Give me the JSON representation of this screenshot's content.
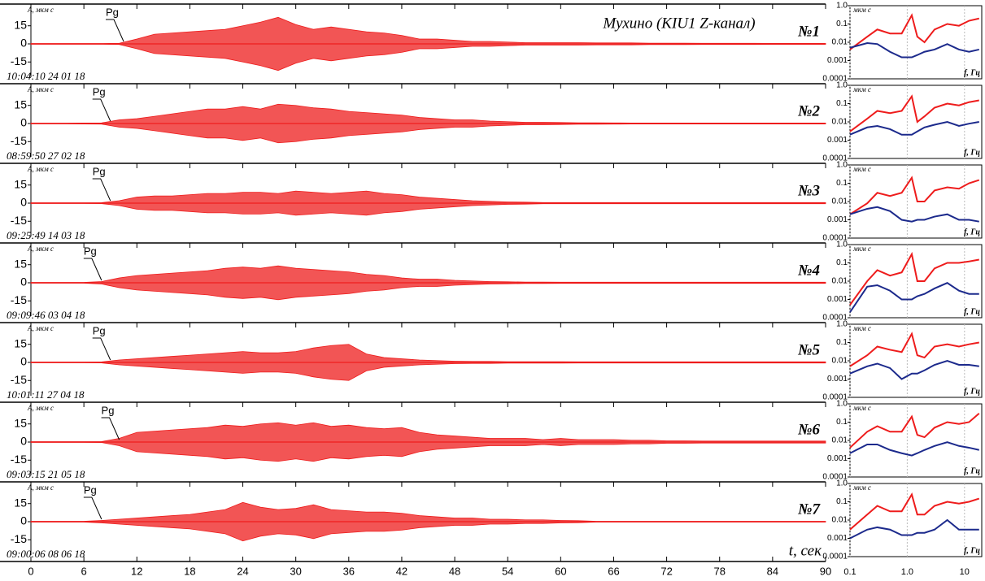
{
  "chart_data": {
    "type": "seismogram",
    "title": "Мухино (KIU1 Z-канал)",
    "xlabel": "t, сек",
    "ylabel": "A, мкм с",
    "pick_label": "Pg",
    "color": "#ee1c1c",
    "xlim": [
      0,
      90
    ],
    "xticks": [
      0,
      6,
      12,
      18,
      24,
      30,
      36,
      42,
      48,
      54,
      60,
      66,
      72,
      78,
      84,
      90
    ],
    "ylim": [
      -33,
      33
    ],
    "yticks": [
      15,
      0,
      -15
    ],
    "x": [
      0,
      2,
      4,
      6,
      8,
      10,
      12,
      14,
      16,
      18,
      20,
      22,
      24,
      26,
      28,
      30,
      32,
      34,
      36,
      38,
      40,
      42,
      44,
      46,
      48,
      50,
      52,
      54,
      56,
      58,
      60,
      62,
      64,
      66,
      68,
      70,
      72,
      74,
      76,
      78,
      80,
      82,
      84,
      86,
      88,
      90
    ],
    "traces": [
      {
        "name": "№1",
        "date": "10:04:10 24 01 18",
        "pg_time": 10.5,
        "values": [
          0.3,
          0.3,
          0.3,
          0.3,
          0.3,
          0.5,
          4,
          8,
          9,
          10,
          11,
          12,
          15,
          18,
          22,
          16,
          12,
          14,
          12,
          10,
          9,
          7,
          4,
          4,
          3,
          2,
          2,
          1.5,
          1,
          1,
          1,
          1,
          0.8,
          0.8,
          0.8,
          0.6,
          0.6,
          0.6,
          0.5,
          0.5,
          0.5,
          0.5,
          0.4,
          0.4,
          0.4,
          0.4
        ]
      },
      {
        "name": "№2",
        "date": "08:59:50 27 02 18",
        "pg_time": 9,
        "values": [
          0.3,
          0.3,
          0.3,
          0.4,
          0.5,
          3,
          4,
          6,
          8,
          10,
          12,
          12,
          14,
          12,
          16,
          15,
          13,
          12,
          10,
          9,
          8,
          7,
          5,
          4,
          3,
          3,
          2,
          1.5,
          1,
          1,
          0.8,
          0.6,
          0.6,
          0.5,
          0.4,
          0.4,
          0.4,
          0.4,
          0.4,
          0.4,
          0.4,
          0.4,
          0.4,
          0.4,
          0.4,
          0.4
        ]
      },
      {
        "name": "№3",
        "date": "09:25:49 14 03 18",
        "pg_time": 9,
        "values": [
          0.3,
          0.3,
          0.3,
          0.3,
          0.4,
          2,
          5,
          6,
          6,
          7,
          8,
          8,
          9,
          9,
          8,
          10,
          9,
          8,
          9,
          10,
          8,
          7,
          5,
          4,
          3,
          2,
          1.5,
          1,
          0.8,
          0.5,
          0.5,
          0.5,
          0.5,
          0.5,
          0.5,
          0.5,
          0.5,
          0.5,
          0.5,
          0.5,
          0.5,
          0.5,
          0.5,
          0.5,
          0.5,
          0.5
        ]
      },
      {
        "name": "№4",
        "date": "09:09:46 03 04 18",
        "pg_time": 8,
        "values": [
          0.3,
          0.3,
          0.3,
          0.3,
          1,
          4,
          6,
          7,
          8,
          9,
          10,
          12,
          13,
          12,
          14,
          12,
          11,
          10,
          9,
          7,
          6,
          4,
          3,
          3,
          2,
          1.5,
          1,
          0.8,
          0.6,
          0.6,
          0.5,
          0.5,
          0.5,
          0.5,
          0.5,
          0.5,
          0.5,
          0.5,
          0.5,
          0.5,
          0.5,
          0.5,
          0.5,
          0.5,
          0.5,
          0.5
        ]
      },
      {
        "name": "№5",
        "date": "10:01:11 27 04 18",
        "pg_time": 9,
        "values": [
          0.3,
          0.3,
          0.3,
          0.3,
          0.4,
          2,
          3,
          4,
          5,
          6,
          7,
          8,
          9,
          8,
          8,
          9,
          12,
          14,
          15,
          7,
          4,
          3,
          2,
          1.5,
          1,
          0.8,
          0.8,
          0.6,
          0.6,
          0.6,
          0.6,
          0.5,
          0.5,
          0.5,
          0.5,
          0.5,
          0.5,
          0.5,
          0.5,
          0.5,
          0.5,
          0.5,
          0.5,
          0.5,
          0.5,
          0.5
        ]
      },
      {
        "name": "№6",
        "date": "09:03:15 21 05 18",
        "pg_time": 10,
        "values": [
          0.3,
          0.3,
          0.3,
          0.3,
          0.4,
          3,
          8,
          9,
          10,
          11,
          12,
          14,
          13,
          15,
          16,
          14,
          16,
          13,
          14,
          12,
          11,
          12,
          8,
          6,
          5,
          4,
          3,
          3,
          3,
          2,
          3,
          2,
          2,
          2,
          1.5,
          1.5,
          1,
          1,
          0.8,
          0.8,
          0.8,
          0.8,
          0.8,
          0.8,
          0.8,
          0.8
        ]
      },
      {
        "name": "№7",
        "date": "09:00:06 08 06 18",
        "pg_time": 8,
        "values": [
          0.3,
          0.3,
          0.3,
          0.3,
          1,
          2,
          3,
          4,
          5,
          6,
          8,
          10,
          16,
          12,
          10,
          11,
          14,
          10,
          9,
          8,
          8,
          7,
          5,
          4,
          3,
          3,
          2,
          2,
          1.5,
          1.5,
          1,
          0.8,
          0.3,
          0.3,
          0.3,
          0.3,
          0.3,
          0.3,
          0.3,
          0.3,
          0.3,
          0.3,
          0.3,
          0.3,
          0.3,
          0.3
        ]
      }
    ],
    "spectra": {
      "type": "line",
      "log": true,
      "ylabel": "мкм с",
      "xlabel": "f, Гц",
      "xlim": [
        0.1,
        20
      ],
      "xticks": [
        0.1,
        {
          "value": 1,
          "label": "1.0"
        },
        10
      ],
      "ylim": [
        0.0001,
        1
      ],
      "yticks": [
        {
          "value": 1,
          "label": "1.0"
        },
        0.1,
        0.01,
        0.001,
        0.0001
      ],
      "x": [
        0.1,
        0.2,
        0.3,
        0.5,
        0.8,
        1.2,
        1.5,
        2,
        3,
        5,
        8,
        12,
        18
      ],
      "panels": [
        {
          "series": [
            {
              "color": "#ee1c1c",
              "values": [
                0.004,
                0.02,
                0.05,
                0.03,
                0.03,
                0.3,
                0.02,
                0.01,
                0.05,
                0.1,
                0.08,
                0.15,
                0.2
              ]
            },
            {
              "color": "#1c2a8c",
              "values": [
                0.005,
                0.009,
                0.008,
                0.003,
                0.0015,
                0.0015,
                0.002,
                0.003,
                0.004,
                0.008,
                0.004,
                0.003,
                0.004
              ]
            }
          ]
        },
        {
          "series": [
            {
              "color": "#ee1c1c",
              "values": [
                0.003,
                0.015,
                0.04,
                0.03,
                0.04,
                0.25,
                0.01,
                0.02,
                0.06,
                0.1,
                0.08,
                0.12,
                0.15
              ]
            },
            {
              "color": "#1c2a8c",
              "values": [
                0.002,
                0.005,
                0.006,
                0.004,
                0.002,
                0.002,
                0.003,
                0.005,
                0.007,
                0.01,
                0.006,
                0.008,
                0.01
              ]
            }
          ]
        },
        {
          "series": [
            {
              "color": "#ee1c1c",
              "values": [
                0.002,
                0.008,
                0.03,
                0.02,
                0.03,
                0.2,
                0.01,
                0.01,
                0.04,
                0.06,
                0.05,
                0.1,
                0.15
              ]
            },
            {
              "color": "#1c2a8c",
              "values": [
                0.002,
                0.004,
                0.005,
                0.003,
                0.001,
                0.0008,
                0.001,
                0.001,
                0.0015,
                0.002,
                0.001,
                0.001,
                0.0008
              ]
            }
          ]
        },
        {
          "series": [
            {
              "color": "#ee1c1c",
              "values": [
                0.0005,
                0.01,
                0.04,
                0.02,
                0.03,
                0.3,
                0.01,
                0.01,
                0.05,
                0.1,
                0.1,
                0.12,
                0.15
              ]
            },
            {
              "color": "#1c2a8c",
              "values": [
                0.0002,
                0.005,
                0.006,
                0.003,
                0.001,
                0.001,
                0.0015,
                0.002,
                0.004,
                0.008,
                0.003,
                0.002,
                0.002
              ]
            }
          ]
        },
        {
          "series": [
            {
              "color": "#ee1c1c",
              "values": [
                0.005,
                0.02,
                0.06,
                0.04,
                0.03,
                0.3,
                0.02,
                0.015,
                0.06,
                0.08,
                0.06,
                0.08,
                0.1
              ]
            },
            {
              "color": "#1c2a8c",
              "values": [
                0.002,
                0.005,
                0.007,
                0.004,
                0.001,
                0.002,
                0.002,
                0.003,
                0.006,
                0.01,
                0.006,
                0.006,
                0.005
              ]
            }
          ]
        },
        {
          "series": [
            {
              "color": "#ee1c1c",
              "values": [
                0.004,
                0.03,
                0.06,
                0.03,
                0.03,
                0.2,
                0.02,
                0.015,
                0.05,
                0.1,
                0.08,
                0.1,
                0.3
              ]
            },
            {
              "color": "#1c2a8c",
              "values": [
                0.002,
                0.006,
                0.006,
                0.003,
                0.002,
                0.0015,
                0.002,
                0.003,
                0.005,
                0.008,
                0.005,
                0.004,
                0.003
              ]
            }
          ]
        },
        {
          "series": [
            {
              "color": "#ee1c1c",
              "values": [
                0.003,
                0.02,
                0.06,
                0.03,
                0.03,
                0.25,
                0.02,
                0.02,
                0.06,
                0.1,
                0.08,
                0.1,
                0.15
              ]
            },
            {
              "color": "#1c2a8c",
              "values": [
                0.001,
                0.003,
                0.004,
                0.003,
                0.0015,
                0.0015,
                0.002,
                0.002,
                0.003,
                0.01,
                0.003,
                0.003,
                0.003
              ]
            }
          ]
        }
      ]
    }
  }
}
